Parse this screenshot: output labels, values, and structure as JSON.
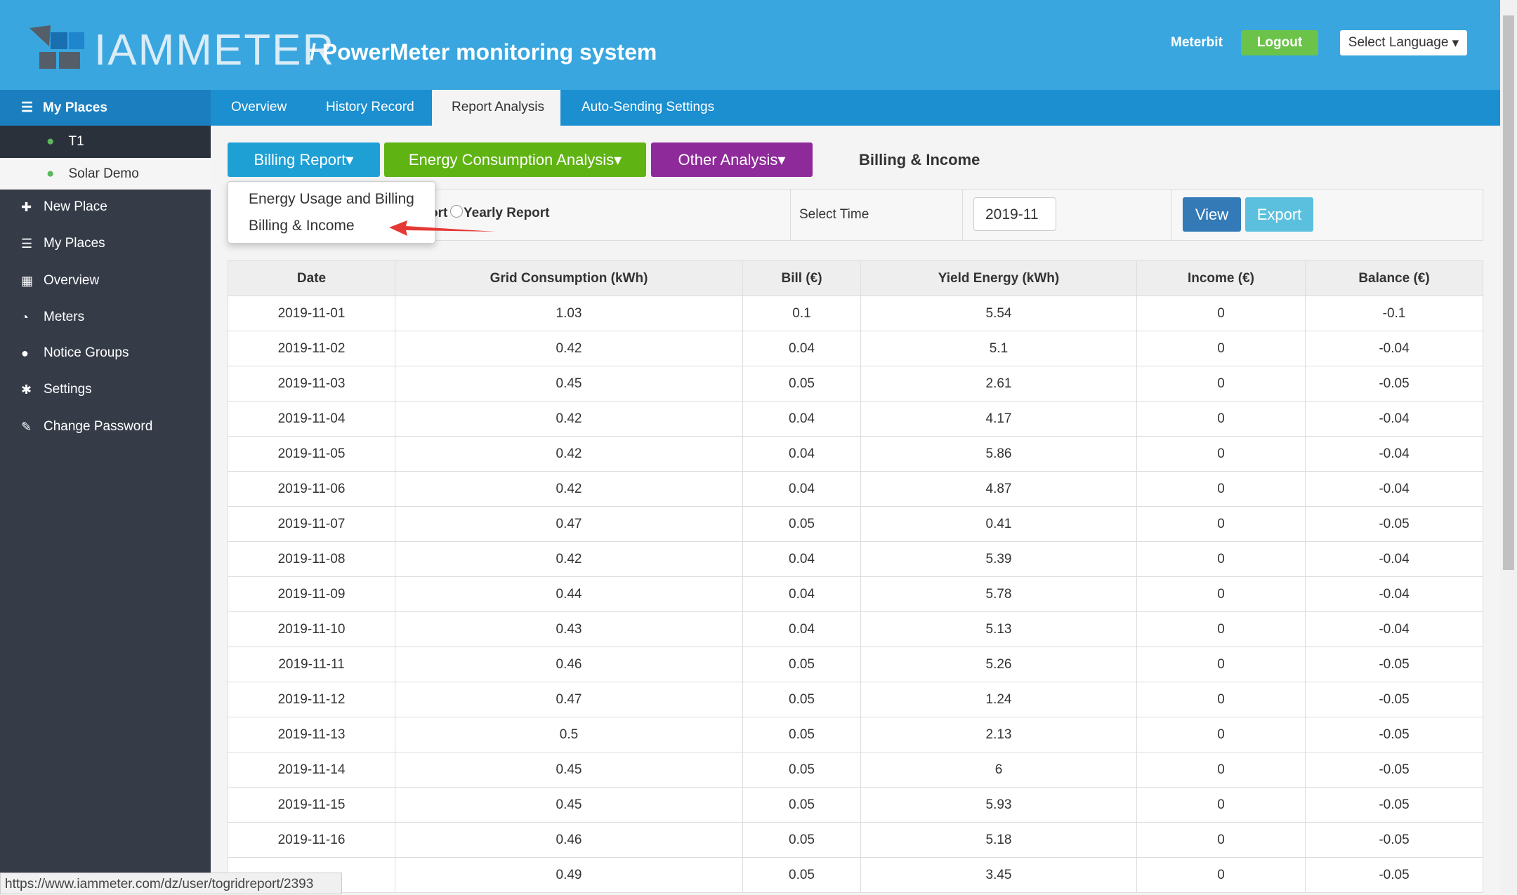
{
  "header": {
    "logo": "IAMMETER",
    "title": "/ PowerMeter monitoring system",
    "user": "Meterbit",
    "logout": "Logout",
    "language": "Select Language"
  },
  "sidebar": {
    "heading": "My Places",
    "places": [
      "T1",
      "Solar Demo"
    ],
    "items": [
      "New Place",
      "My Places",
      "Overview",
      "Meters",
      "Notice Groups",
      "Settings",
      "Change Password"
    ]
  },
  "tabs": [
    "Overview",
    "History Record",
    "Report Analysis",
    "Auto-Sending Settings"
  ],
  "toolbar": {
    "buttons": [
      "Billing Report",
      "Energy Consumption Analysis",
      "Other Analysis"
    ],
    "heading": "Billing & Income"
  },
  "dropdown": [
    "Energy Usage and Billing",
    "Billing & Income"
  ],
  "form": {
    "radio_a": "ort",
    "radio_b": "Yearly Report",
    "time_label": "Select Time",
    "time_value": "2019-11",
    "view": "View",
    "export": "Export"
  },
  "table": {
    "columns": [
      "Date",
      "Grid Consumption (kWh)",
      "Bill (€)",
      "Yield Energy (kWh)",
      "Income (€)",
      "Balance (€)"
    ],
    "rows": [
      [
        "2019-11-01",
        "1.03",
        "0.1",
        "5.54",
        "0",
        "-0.1"
      ],
      [
        "2019-11-02",
        "0.42",
        "0.04",
        "5.1",
        "0",
        "-0.04"
      ],
      [
        "2019-11-03",
        "0.45",
        "0.05",
        "2.61",
        "0",
        "-0.05"
      ],
      [
        "2019-11-04",
        "0.42",
        "0.04",
        "4.17",
        "0",
        "-0.04"
      ],
      [
        "2019-11-05",
        "0.42",
        "0.04",
        "5.86",
        "0",
        "-0.04"
      ],
      [
        "2019-11-06",
        "0.42",
        "0.04",
        "4.87",
        "0",
        "-0.04"
      ],
      [
        "2019-11-07",
        "0.47",
        "0.05",
        "0.41",
        "0",
        "-0.05"
      ],
      [
        "2019-11-08",
        "0.42",
        "0.04",
        "5.39",
        "0",
        "-0.04"
      ],
      [
        "2019-11-09",
        "0.44",
        "0.04",
        "5.78",
        "0",
        "-0.04"
      ],
      [
        "2019-11-10",
        "0.43",
        "0.04",
        "5.13",
        "0",
        "-0.04"
      ],
      [
        "2019-11-11",
        "0.46",
        "0.05",
        "5.26",
        "0",
        "-0.05"
      ],
      [
        "2019-11-12",
        "0.47",
        "0.05",
        "1.24",
        "0",
        "-0.05"
      ],
      [
        "2019-11-13",
        "0.5",
        "0.05",
        "2.13",
        "0",
        "-0.05"
      ],
      [
        "2019-11-14",
        "0.45",
        "0.05",
        "6",
        "0",
        "-0.05"
      ],
      [
        "2019-11-15",
        "0.45",
        "0.05",
        "5.93",
        "0",
        "-0.05"
      ],
      [
        "2019-11-16",
        "0.46",
        "0.05",
        "5.18",
        "0",
        "-0.05"
      ],
      [
        null,
        "0.49",
        "0.05",
        "3.45",
        "0",
        "-0.05"
      ]
    ]
  },
  "status_url": "https://www.iammeter.com/dz/user/togridreport/2393"
}
